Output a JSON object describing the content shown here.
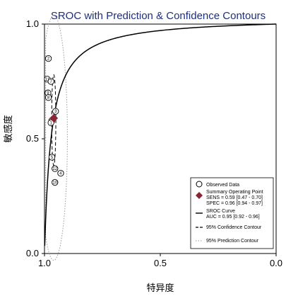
{
  "chart_data": {
    "type": "scatter",
    "title": "SROC with Prediction & Confidence Contours",
    "xlabel": "特异度",
    "ylabel": "敏感度",
    "x_reversed": true,
    "xlim": [
      1.0,
      0.0
    ],
    "ylim": [
      0.0,
      1.0
    ],
    "x_ticks": [
      1.0,
      0.5,
      0.0
    ],
    "y_ticks": [
      0.0,
      0.5,
      1.0
    ],
    "x_tick_labels": [
      "1.0",
      "0.5",
      "0.0"
    ],
    "y_tick_labels": [
      "0.0",
      "0.5",
      "1.0"
    ],
    "grid": false,
    "legend_position": "bottom-right",
    "observed_points": [
      {
        "label": "2",
        "x": 0.983,
        "y": 0.85
      },
      {
        "label": "11",
        "x": 0.988,
        "y": 0.76
      },
      {
        "label": "7",
        "x": 0.972,
        "y": 0.75
      },
      {
        "label": "9",
        "x": 0.985,
        "y": 0.7
      },
      {
        "label": "8",
        "x": 0.983,
        "y": 0.68
      },
      {
        "label": "3",
        "x": 0.952,
        "y": 0.62
      },
      {
        "label": "6",
        "x": 0.968,
        "y": 0.58
      },
      {
        "label": "1",
        "x": 0.972,
        "y": 0.57
      },
      {
        "label": "5",
        "x": 0.968,
        "y": 0.42
      },
      {
        "label": "12",
        "x": 0.955,
        "y": 0.37
      },
      {
        "label": "4",
        "x": 0.93,
        "y": 0.35
      },
      {
        "label": "10",
        "x": 0.955,
        "y": 0.31
      }
    ],
    "summary_point": {
      "x": 0.96,
      "y": 0.59
    },
    "sroc_auc": 0.95,
    "legend": [
      {
        "key": "observed",
        "text": "Observed Data"
      },
      {
        "key": "summary",
        "text": "Summary Operating Point",
        "sub": [
          "SENS = 0.59 [0.47 - 0.70]",
          "SPEC = 0.96 [0.94 - 0.97]"
        ]
      },
      {
        "key": "sroc",
        "text": "SROC Curve",
        "sub": [
          "AUC = 0.95 [0.92 - 0.96]"
        ]
      },
      {
        "key": "confidence",
        "text": "95% Confidence Contour"
      },
      {
        "key": "prediction",
        "text": "95% Prediction Contour"
      }
    ],
    "colors": {
      "summary": "#8b2433",
      "curve": "#000000",
      "prediction": "#9a9a9a",
      "title": "#1f2f7a"
    }
  }
}
